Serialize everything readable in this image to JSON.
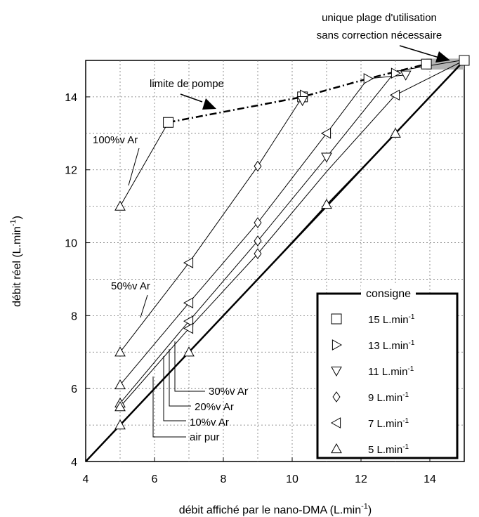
{
  "chart_data": {
    "type": "line",
    "xlabel": "débit affiché par le nano-DMA (L.min",
    "xlabel_exp": "-1",
    "xlabel_close": ")",
    "ylabel": "débit réel (L.min",
    "ylabel_exp": "-1",
    "ylabel_close": ")",
    "xlim": [
      4,
      15
    ],
    "ylim": [
      4,
      15
    ],
    "xticks": [
      4,
      6,
      8,
      10,
      12,
      14
    ],
    "yticks": [
      4,
      6,
      8,
      10,
      12,
      14
    ],
    "grid": "dotted",
    "identity_line": {
      "x": [
        4,
        15
      ],
      "y": [
        4,
        15
      ]
    },
    "series": [
      {
        "name": "air pur",
        "x": [
          5,
          7,
          9,
          11,
          13,
          15
        ],
        "y": [
          5.0,
          7.0,
          9.0,
          11.05,
          13.0,
          15.0
        ]
      },
      {
        "name": "10%v Ar",
        "x": [
          5,
          7,
          9,
          11,
          13,
          15
        ],
        "y": [
          5.5,
          7.65,
          9.7,
          11.95,
          14.05,
          15.0
        ]
      },
      {
        "name": "20%v Ar",
        "x": [
          5,
          7,
          9,
          11,
          13,
          14.9
        ],
        "y": [
          5.6,
          7.85,
          10.05,
          12.35,
          14.7,
          15.0
        ]
      },
      {
        "name": "30%v Ar",
        "x": [
          5,
          7,
          9,
          11,
          12.2,
          13.3
        ],
        "y": [
          6.1,
          8.35,
          10.55,
          13.0,
          14.5,
          14.6
        ]
      },
      {
        "name": "50%v Ar",
        "x": [
          5,
          7,
          9,
          10.3
        ],
        "y": [
          7.0,
          9.45,
          12.1,
          14.0
        ]
      },
      {
        "name": "100%v Ar",
        "x": [
          5,
          6.4
        ],
        "y": [
          11.0,
          13.3
        ]
      }
    ],
    "pump_limit": {
      "x": [
        6.4,
        10.3,
        12.2,
        13.9
      ],
      "y": [
        13.3,
        14.0,
        14.5,
        14.9
      ]
    },
    "markers": [
      {
        "symbol": "square",
        "x": [
          6.4,
          10.3,
          13.9,
          15
        ],
        "y": [
          13.3,
          14.0,
          14.9,
          15.0
        ]
      },
      {
        "symbol": "triangle-right",
        "x": [
          10.35,
          12.2,
          13.0
        ],
        "y": [
          14.05,
          14.5,
          14.65
        ]
      },
      {
        "symbol": "triangle-down",
        "x": [
          10.3,
          11.0,
          13.3
        ],
        "y": [
          13.9,
          12.35,
          14.6
        ]
      },
      {
        "symbol": "diamond",
        "x": [
          9.0,
          9.0,
          9.0,
          9.0
        ],
        "y": [
          12.1,
          10.55,
          10.05,
          9.7
        ]
      },
      {
        "symbol": "triangle-left",
        "x": [
          7.0,
          7.0,
          7.0,
          7.0,
          11.0,
          13.0
        ],
        "y": [
          9.45,
          8.35,
          7.85,
          7.65,
          13.0,
          14.05
        ]
      },
      {
        "symbol": "triangle-up",
        "x": [
          5,
          5,
          5,
          5,
          5,
          5,
          7,
          11,
          13
        ],
        "y": [
          11.0,
          7.0,
          6.1,
          5.6,
          5.5,
          5.0,
          7.0,
          11.05,
          13.0
        ]
      }
    ],
    "annotations": {
      "limite_de_pompe": "limite de pompe",
      "unique_line1": "unique plage d'utilisation",
      "unique_line2": "sans correction nécessaire",
      "label_100": "100%v Ar",
      "label_50": "50%v Ar",
      "label_30": "30%v Ar",
      "label_20": "20%v Ar",
      "label_10": "10%v Ar",
      "label_air": "air pur"
    },
    "legend": {
      "title": "consigne",
      "placement": "bottom-right",
      "items": [
        {
          "symbol": "square",
          "label": "15 L.min",
          "exp": "-1"
        },
        {
          "symbol": "triangle-right",
          "label": "13 L.min",
          "exp": "-1"
        },
        {
          "symbol": "triangle-down",
          "label": "11 L.min",
          "exp": "-1"
        },
        {
          "symbol": "diamond",
          "label": "9 L.min",
          "exp": "-1"
        },
        {
          "symbol": "triangle-left",
          "label": "7 L.min",
          "exp": "-1"
        },
        {
          "symbol": "triangle-up",
          "label": "5 L.min",
          "exp": "-1"
        }
      ]
    }
  }
}
